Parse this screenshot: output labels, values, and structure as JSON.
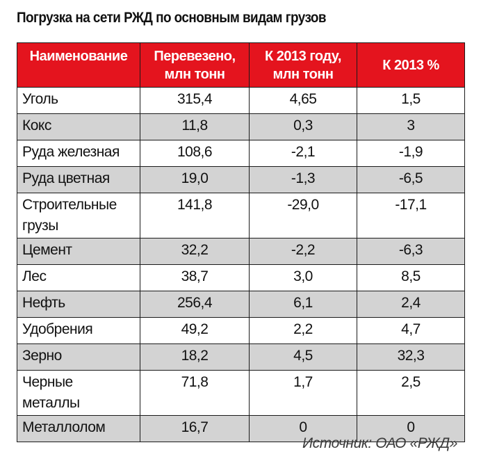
{
  "title": "Погрузка на сети РЖД по основным видам грузов",
  "table": {
    "headers": [
      {
        "line1": "Наименование",
        "line2": ""
      },
      {
        "line1": "Перевезено,",
        "line2": "млн тонн"
      },
      {
        "line1": "К 2013 году,",
        "line2": "млн тонн"
      },
      {
        "line1": "К 2013 %",
        "line2": ""
      }
    ],
    "rows": [
      {
        "name1": "Уголь",
        "name2": "",
        "transported": "315,4",
        "change_abs": "4,65",
        "change_pct": "1,5"
      },
      {
        "name1": "Кокс",
        "name2": "",
        "transported": "11,8",
        "change_abs": "0,3",
        "change_pct": "3"
      },
      {
        "name1": "Руда железная",
        "name2": "",
        "transported": "108,6",
        "change_abs": "-2,1",
        "change_pct": "-1,9"
      },
      {
        "name1": "Руда цветная",
        "name2": "",
        "transported": "19,0",
        "change_abs": "-1,3",
        "change_pct": "-6,5"
      },
      {
        "name1": "Строительные",
        "name2": "грузы",
        "transported": "141,8",
        "change_abs": "-29,0",
        "change_pct": "-17,1"
      },
      {
        "name1": "Цемент",
        "name2": "",
        "transported": "32,2",
        "change_abs": "-2,2",
        "change_pct": "-6,3"
      },
      {
        "name1": "Лес",
        "name2": "",
        "transported": "38,7",
        "change_abs": "3,0",
        "change_pct": "8,5"
      },
      {
        "name1": "Нефть",
        "name2": "",
        "transported": "256,4",
        "change_abs": "6,1",
        "change_pct": "2,4"
      },
      {
        "name1": "Удобрения",
        "name2": "",
        "transported": "49,2",
        "change_abs": "2,2",
        "change_pct": "4,7"
      },
      {
        "name1": "Зерно",
        "name2": "",
        "transported": "18,2",
        "change_abs": "4,5",
        "change_pct": "32,3"
      },
      {
        "name1": "Черные",
        "name2": "металлы",
        "transported": "71,8",
        "change_abs": "1,7",
        "change_pct": "2,5"
      },
      {
        "name1": "Металлолом",
        "name2": "",
        "transported": "16,7",
        "change_abs": "0",
        "change_pct": "0"
      }
    ]
  },
  "source": "Источник: ОАО «РЖД»",
  "colors": {
    "header_background": "#e4141e",
    "header_text": "#ffffff",
    "row_white": "#ffffff",
    "row_grey": "#d3d3d3"
  }
}
